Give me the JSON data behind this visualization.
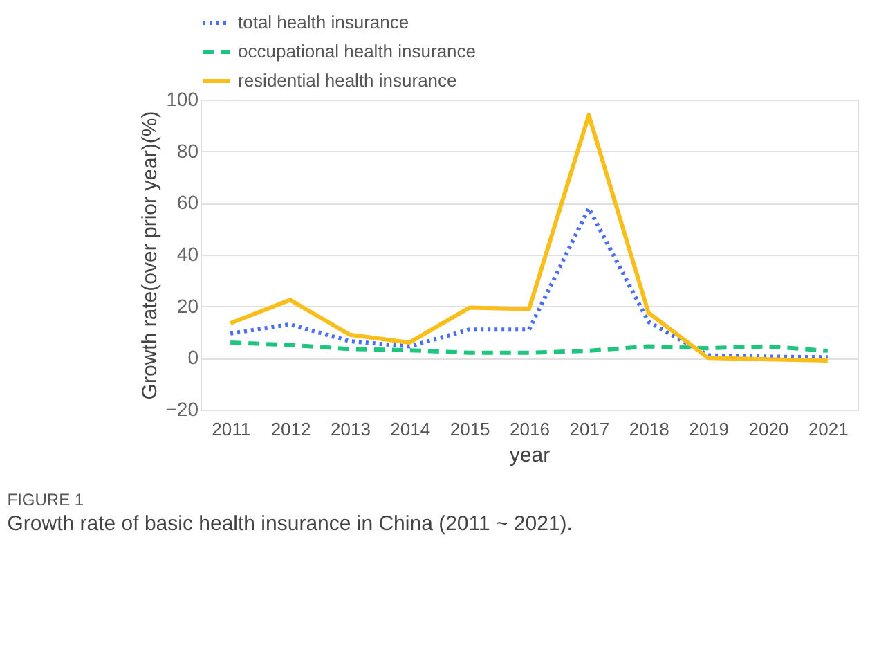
{
  "chart_data": {
    "type": "line",
    "title": "FIGURE 1",
    "subtitle": "Growth rate of basic health insurance in China (2011 ~ 2021).",
    "xlabel": "year",
    "ylabel": "Growth rate(over prior year)(%)",
    "categories": [
      "2011",
      "2012",
      "2013",
      "2014",
      "2015",
      "2016",
      "2017",
      "2018",
      "2019",
      "2020",
      "2021"
    ],
    "series": [
      {
        "name": "total health insurance",
        "color": "#4a6ff0",
        "line_style": "dotted",
        "values": [
          9.5,
          13,
          6.5,
          4.5,
          11,
          11,
          58,
          14,
          1,
          0.5,
          0.3
        ]
      },
      {
        "name": "occupational health insurance",
        "color": "#1fc47f",
        "line_style": "dashed",
        "values": [
          6,
          5,
          3.5,
          3,
          2,
          2,
          2.8,
          4.5,
          3.8,
          4.5,
          2.8
        ]
      },
      {
        "name": "residential health insurance",
        "color": "#f8bf1c",
        "line_style": "solid",
        "values": [
          13.5,
          22.5,
          9,
          6,
          19.5,
          19,
          94,
          17.5,
          0,
          -0.5,
          -1
        ]
      }
    ],
    "ylim": [
      -20,
      100
    ],
    "yticks": [
      -20,
      0,
      20,
      40,
      60,
      80,
      100
    ],
    "grid": "y",
    "legend": "top",
    "marker": "none"
  }
}
